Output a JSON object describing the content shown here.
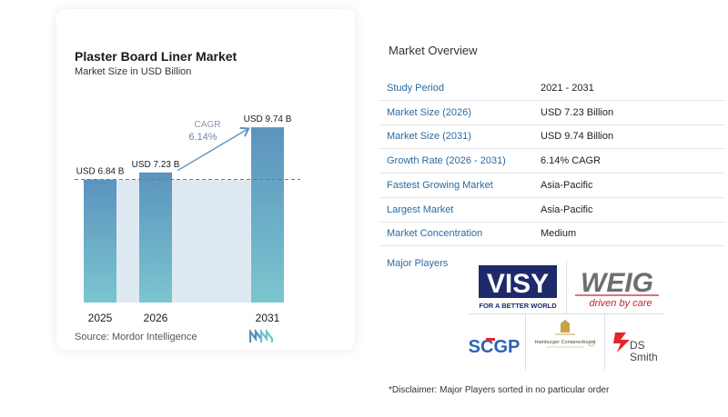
{
  "chart_data": {
    "type": "bar",
    "title": "Plaster Board Liner Market",
    "subtitle": "Market Size in USD Billion",
    "categories": [
      "2025",
      "2026",
      "2031"
    ],
    "values": [
      6.84,
      7.23,
      9.74
    ],
    "data_labels": [
      "USD 6.84 B",
      "USD 7.23 B",
      "USD 9.74 B"
    ],
    "ylim": [
      0,
      10.5
    ],
    "annotation": {
      "label": "CAGR",
      "value": "6.14%"
    },
    "colors": {
      "bar_top": "#5b93be",
      "bar_bottom": "#7cc5cf",
      "shade": "#dfe9f2",
      "dashed": "#5b7fa3",
      "arrow": "#5b93be"
    },
    "grid": false,
    "legend": "none"
  },
  "chart": {
    "source": "Source: Mordor Intelligence"
  },
  "overview": {
    "title": "Market Overview",
    "rows": [
      {
        "key": "Study Period",
        "value": "2021 - 2031"
      },
      {
        "key": "Market Size (2026)",
        "value": "USD 7.23 Billion"
      },
      {
        "key": "Market Size (2031)",
        "value": "USD 9.74 Billion"
      },
      {
        "key": "Growth Rate (2026 - 2031)",
        "value": "6.14% CAGR"
      },
      {
        "key": "Fastest Growing Market",
        "value": "Asia-Pacific"
      },
      {
        "key": "Largest Market",
        "value": "Asia-Pacific"
      },
      {
        "key": "Market Concentration",
        "value": "Medium"
      }
    ],
    "players_label": "Major Players",
    "players": {
      "visy": {
        "word": "VISY",
        "tagline": "FOR A BETTER WORLD"
      },
      "weig": {
        "word": "WEIG",
        "tagline": "driven by care"
      },
      "scgp": {
        "word": "SCGP"
      },
      "hamburger": {
        "word": "Hamburger Containerboard"
      },
      "ds_smith": {
        "word": "DS Smith"
      }
    },
    "disclaimer": "*Disclaimer: Major Players sorted in no particular order"
  }
}
